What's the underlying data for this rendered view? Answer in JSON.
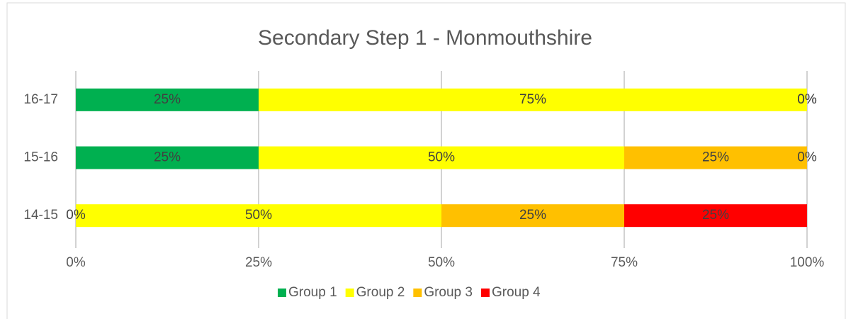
{
  "chart_data": {
    "type": "stacked_barh",
    "title": "Secondary Step 1 - Monmouthshire",
    "categories": [
      "14-15",
      "15-16",
      "16-17"
    ],
    "series": [
      {
        "name": "Group 1",
        "color": "#00b050",
        "values": [
          0,
          25,
          25
        ],
        "value_labels": [
          "0%",
          "25%",
          "25%"
        ]
      },
      {
        "name": "Group 2",
        "color": "#ffff00",
        "values": [
          50,
          50,
          75
        ],
        "value_labels": [
          "50%",
          "50%",
          "75%"
        ]
      },
      {
        "name": "Group 3",
        "color": "#ffc000",
        "values": [
          25,
          25,
          0
        ],
        "value_labels": [
          "25%",
          "25%",
          "0%"
        ]
      },
      {
        "name": "Group 4",
        "color": "#ff0000",
        "values": [
          25,
          0,
          0
        ],
        "value_labels": [
          "25%",
          "0%",
          "0%"
        ]
      }
    ],
    "xlim": [
      0,
      100
    ],
    "xticks": [
      {
        "value": 0,
        "label": "0%"
      },
      {
        "value": 25,
        "label": "25%"
      },
      {
        "value": 50,
        "label": "50%"
      },
      {
        "value": 75,
        "label": "75%"
      },
      {
        "value": 100,
        "label": "100%"
      }
    ],
    "grid": true,
    "legend": "bottom"
  }
}
